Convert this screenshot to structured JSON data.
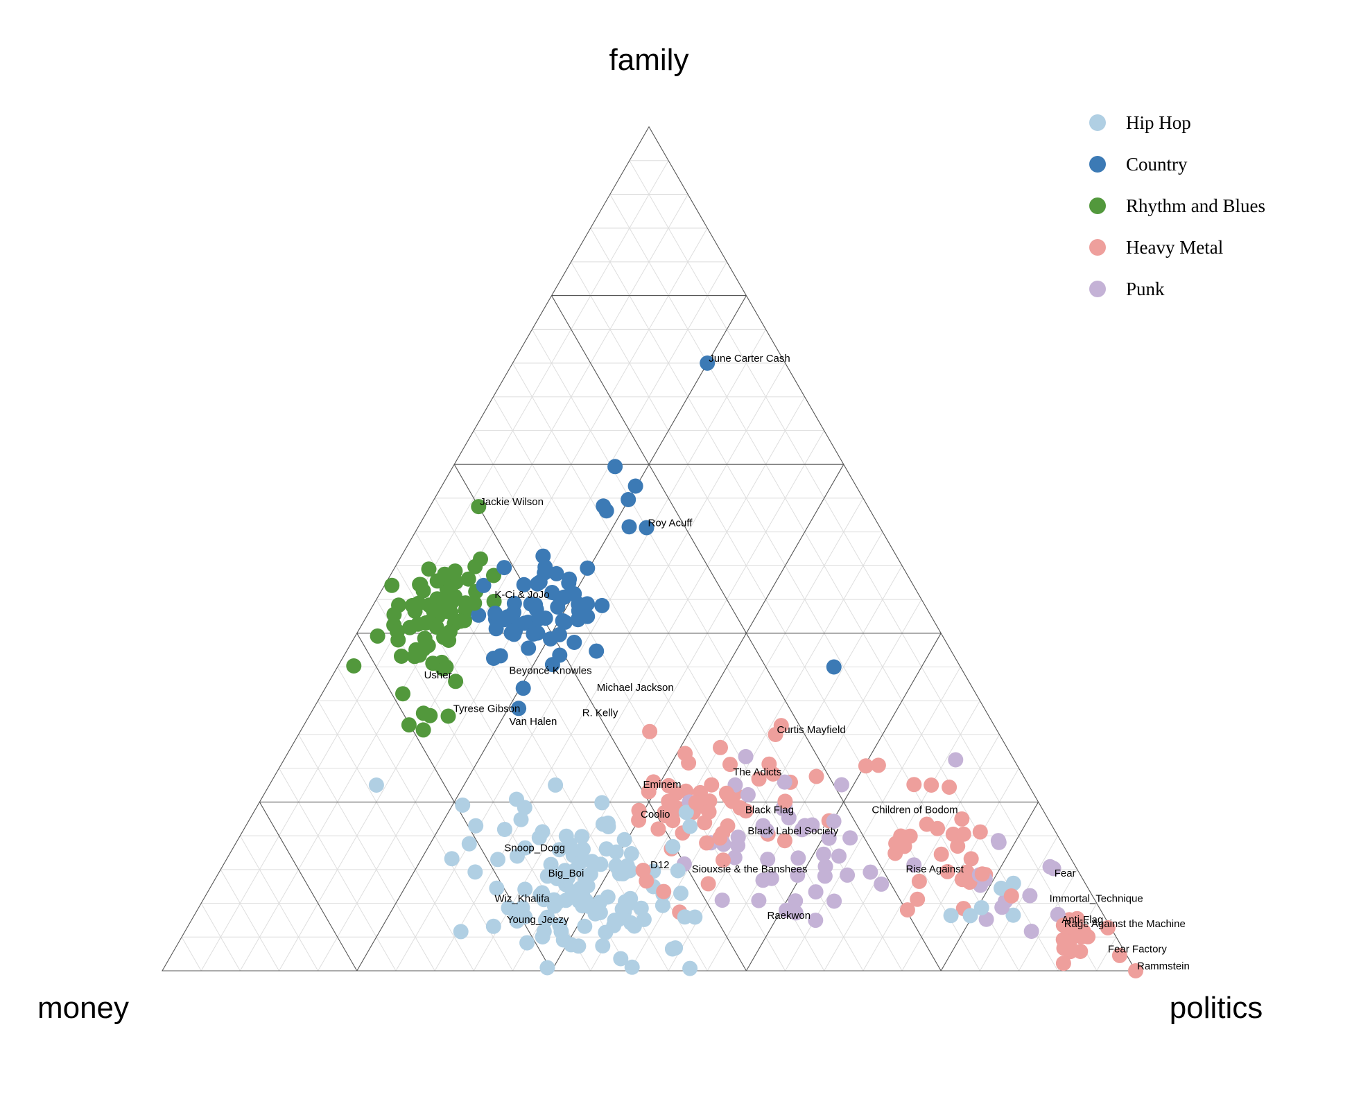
{
  "chart_data": {
    "type": "scatter",
    "subtype": "ternary",
    "axes": {
      "top": "family",
      "left": "money",
      "right": "politics"
    },
    "grid": true,
    "legend_position": "top-right",
    "series": [
      {
        "name": "Hip Hop",
        "color": "#b0cfe3"
      },
      {
        "name": "Country",
        "color": "#3c7ab5"
      },
      {
        "name": "Rhythm and Blues",
        "color": "#52983c"
      },
      {
        "name": "Heavy Metal",
        "color": "#ee9f9c"
      },
      {
        "name": "Punk",
        "color": "#c4b2d6"
      }
    ],
    "labels": [
      {
        "text": "June Carter Cash",
        "family": 0.72,
        "money": 0.08,
        "politics": 0.2
      },
      {
        "text": "Roy Acuff",
        "family": 0.525,
        "money": 0.24,
        "politics": 0.235
      },
      {
        "text": "Jackie Wilson",
        "family": 0.55,
        "money": 0.4,
        "politics": 0.05
      },
      {
        "text": "K-Ci & JoJo",
        "family": 0.44,
        "money": 0.44,
        "politics": 0.12
      },
      {
        "text": "Beyoncé Knowles",
        "family": 0.35,
        "money": 0.47,
        "politics": 0.18
      },
      {
        "text": "Usher",
        "family": 0.345,
        "money": 0.56,
        "politics": 0.095
      },
      {
        "text": "Michael Jackson",
        "family": 0.33,
        "money": 0.39,
        "politics": 0.28
      },
      {
        "text": "Tyrese Gibson",
        "family": 0.305,
        "money": 0.55,
        "politics": 0.145
      },
      {
        "text": "R. Kelly",
        "family": 0.3,
        "money": 0.42,
        "politics": 0.28
      },
      {
        "text": "Van Halen",
        "family": 0.29,
        "money": 0.5,
        "politics": 0.21
      },
      {
        "text": "Curtis Mayfield",
        "family": 0.28,
        "money": 0.23,
        "politics": 0.49
      },
      {
        "text": "The Adicts",
        "family": 0.23,
        "money": 0.3,
        "politics": 0.47
      },
      {
        "text": "Eminem",
        "family": 0.215,
        "money": 0.4,
        "politics": 0.385
      },
      {
        "text": "Children of Bodom",
        "family": 0.185,
        "money": 0.18,
        "politics": 0.635
      },
      {
        "text": "Black Flag",
        "family": 0.185,
        "money": 0.31,
        "politics": 0.505
      },
      {
        "text": "Coolio",
        "family": 0.18,
        "money": 0.42,
        "politics": 0.4
      },
      {
        "text": "Black Label Society",
        "family": 0.16,
        "money": 0.32,
        "politics": 0.52
      },
      {
        "text": "Snoop_Dogg",
        "family": 0.14,
        "money": 0.58,
        "politics": 0.28
      },
      {
        "text": "D12",
        "family": 0.12,
        "money": 0.44,
        "politics": 0.44
      },
      {
        "text": "Fear",
        "family": 0.11,
        "money": 0.03,
        "politics": 0.86
      },
      {
        "text": "Rise Against",
        "family": 0.115,
        "money": 0.18,
        "politics": 0.705
      },
      {
        "text": "Siouxsie & the Banshees",
        "family": 0.115,
        "money": 0.4,
        "politics": 0.485
      },
      {
        "text": "Big_Boi",
        "family": 0.11,
        "money": 0.55,
        "politics": 0.34
      },
      {
        "text": "Immortal_Technique",
        "family": 0.08,
        "money": 0.05,
        "politics": 0.87
      },
      {
        "text": "Wiz_Khalifa",
        "family": 0.08,
        "money": 0.62,
        "politics": 0.3
      },
      {
        "text": "Raekwon",
        "family": 0.06,
        "money": 0.35,
        "politics": 0.59
      },
      {
        "text": "Young_Jeezy",
        "family": 0.055,
        "money": 0.62,
        "politics": 0.325
      },
      {
        "text": "Anti-Flag",
        "family": 0.055,
        "money": 0.05,
        "politics": 0.895
      },
      {
        "text": "Rage Against the Machine",
        "family": 0.05,
        "money": 0.05,
        "politics": 0.9
      },
      {
        "text": "Fear Factory",
        "family": 0.02,
        "money": 0.02,
        "politics": 0.96
      },
      {
        "text": "Rammstein",
        "family": 0.0,
        "money": 0.0,
        "politics": 1.0
      }
    ]
  }
}
